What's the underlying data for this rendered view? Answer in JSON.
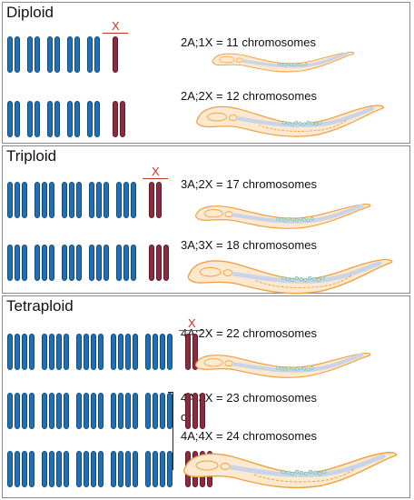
{
  "colors": {
    "autosome": "#1f6fb2",
    "x_chromosome": "#8e2b3f",
    "worm_outline": "#f0a040",
    "worm_fill": "#fce9cf"
  },
  "x_marker": "X",
  "panels": [
    {
      "title": "Diploid",
      "rows": [
        {
          "label": "2A;1X = 11 chromosomes",
          "groups": 5,
          "per_group": 2,
          "x_count": 1,
          "marked": true
        },
        {
          "label": "2A;2X = 12 chromosomes",
          "groups": 5,
          "per_group": 2,
          "x_count": 2,
          "marked": false
        }
      ]
    },
    {
      "title": "Triploid",
      "rows": [
        {
          "label": "3A;2X = 17 chromosomes",
          "groups": 5,
          "per_group": 3,
          "x_count": 2,
          "marked": true
        },
        {
          "label": "3A;3X = 18 chromosomes",
          "groups": 5,
          "per_group": 3,
          "x_count": 3,
          "marked": false
        }
      ]
    },
    {
      "title": "Tetraploid",
      "rows": [
        {
          "label": "4A;2X = 22 chromosomes",
          "groups": 5,
          "per_group": 4,
          "x_count": 2,
          "marked": true
        },
        {
          "label": "",
          "groups": 5,
          "per_group": 4,
          "x_count": 3,
          "marked": false
        },
        {
          "label": "",
          "groups": 5,
          "per_group": 4,
          "x_count": 4,
          "marked": false
        }
      ],
      "combined": {
        "line1": "4A;3X = 23 chromosomes",
        "or": "or",
        "line2": "4A;4X = 24 chromosomes"
      }
    }
  ]
}
